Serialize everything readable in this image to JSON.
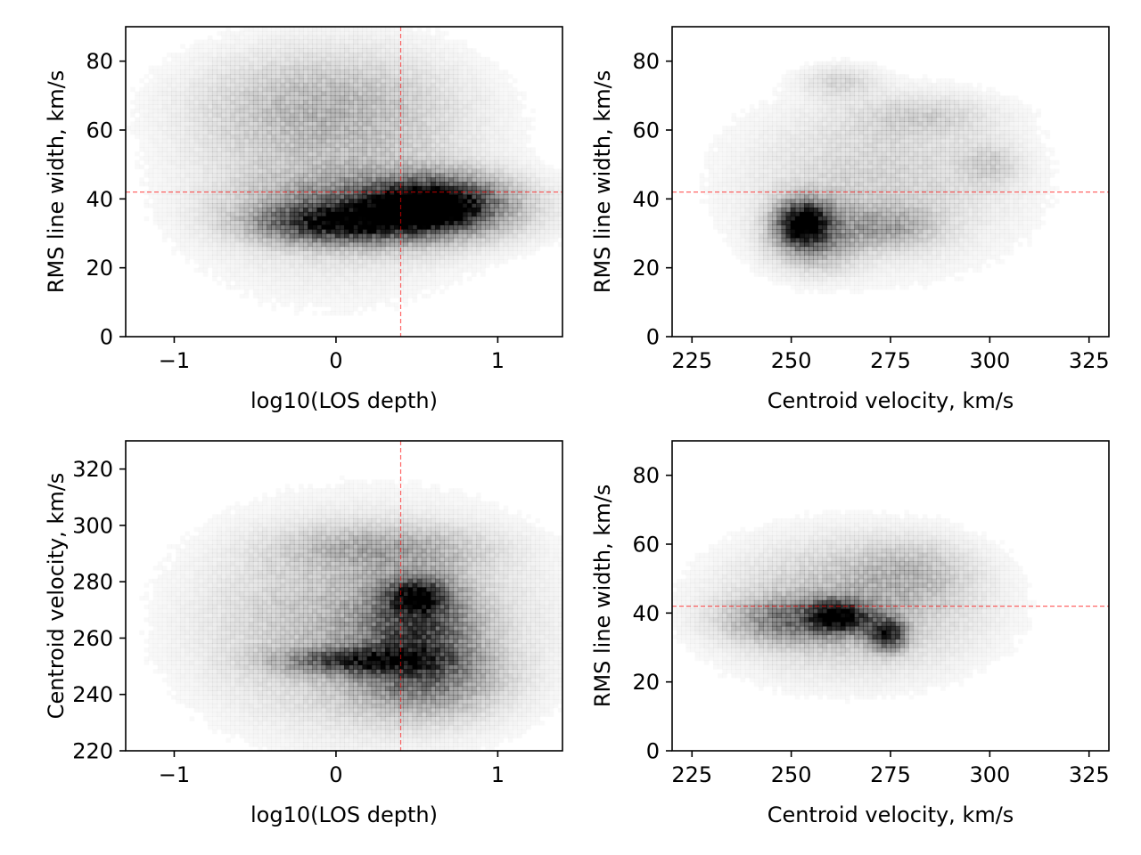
{
  "figure": {
    "ref_line_color": "#ff0000",
    "density_color": "#000000",
    "background": "#ffffff"
  },
  "chart_data": [
    {
      "type": "heatmap",
      "title": "",
      "xlabel": "log10(LOS depth)",
      "ylabel": "RMS line width, km/s",
      "xlim": [
        -1.3,
        1.4
      ],
      "ylim": [
        0,
        90
      ],
      "xticks": [
        -1,
        0,
        1
      ],
      "xtick_labels": [
        "−1",
        "0",
        "1"
      ],
      "yticks": [
        0,
        20,
        40,
        60,
        80
      ],
      "ytick_labels": [
        "0",
        "20",
        "40",
        "60",
        "80"
      ],
      "ref_lines": {
        "x": 0.4,
        "y": 42
      },
      "density_blobs": [
        {
          "x": 0.0,
          "y": 50,
          "sx": 0.55,
          "sy": 20,
          "w": 0.15
        },
        {
          "x": -0.1,
          "y": 68,
          "sx": 0.5,
          "sy": 9,
          "w": 0.12
        },
        {
          "x": 0.35,
          "y": 37,
          "sx": 0.45,
          "sy": 6,
          "w": 0.55
        },
        {
          "x": 0.0,
          "y": 33,
          "sx": 0.3,
          "sy": 3.5,
          "w": 0.65
        },
        {
          "x": 0.55,
          "y": 37,
          "sx": 0.2,
          "sy": 3.5,
          "w": 0.95
        },
        {
          "x": 0.65,
          "y": 40,
          "sx": 0.25,
          "sy": 5,
          "w": 0.4
        }
      ]
    },
    {
      "type": "heatmap",
      "title": "",
      "xlabel": "Centroid velocity, km/s",
      "ylabel": "RMS line width, km/s",
      "xlim": [
        220,
        330
      ],
      "ylim": [
        0,
        90
      ],
      "xticks": [
        225,
        250,
        275,
        300,
        325
      ],
      "xtick_labels": [
        "225",
        "250",
        "275",
        "300",
        "325"
      ],
      "yticks": [
        0,
        20,
        40,
        60,
        80
      ],
      "ytick_labels": [
        "0",
        "20",
        "40",
        "60",
        "80"
      ],
      "ref_lines": {
        "y": 42
      },
      "density_blobs": [
        {
          "x": 272,
          "y": 45,
          "sx": 22,
          "sy": 15,
          "w": 0.12
        },
        {
          "x": 253,
          "y": 33,
          "sx": 4,
          "sy": 4,
          "w": 1.0
        },
        {
          "x": 256,
          "y": 30,
          "sx": 7,
          "sy": 6,
          "w": 0.35
        },
        {
          "x": 274,
          "y": 32,
          "sx": 8,
          "sy": 4,
          "w": 0.22
        },
        {
          "x": 262,
          "y": 74,
          "sx": 6,
          "sy": 3,
          "w": 0.1
        },
        {
          "x": 283,
          "y": 64,
          "sx": 12,
          "sy": 4,
          "w": 0.09
        },
        {
          "x": 300,
          "y": 50,
          "sx": 5,
          "sy": 4,
          "w": 0.1
        }
      ]
    },
    {
      "type": "heatmap",
      "title": "",
      "xlabel": "log10(LOS depth)",
      "ylabel": "Centroid velocity, km/s",
      "xlim": [
        -1.3,
        1.4
      ],
      "ylim": [
        220,
        330
      ],
      "xticks": [
        -1,
        0,
        1
      ],
      "xtick_labels": [
        "−1",
        "0",
        "1"
      ],
      "yticks": [
        220,
        240,
        260,
        280,
        300,
        320
      ],
      "ytick_labels": [
        "220",
        "240",
        "260",
        "280",
        "300",
        "320"
      ],
      "ref_lines": {
        "x": 0.4
      },
      "density_blobs": [
        {
          "x": 0.2,
          "y": 265,
          "sx": 0.6,
          "sy": 22,
          "w": 0.22
        },
        {
          "x": 0.15,
          "y": 252,
          "sx": 0.3,
          "sy": 3,
          "w": 0.6
        },
        {
          "x": 0.5,
          "y": 262,
          "sx": 0.22,
          "sy": 12,
          "w": 0.5
        },
        {
          "x": 0.5,
          "y": 275,
          "sx": 0.12,
          "sy": 4,
          "w": 0.7
        },
        {
          "x": 0.55,
          "y": 245,
          "sx": 0.3,
          "sy": 8,
          "w": 0.25
        },
        {
          "x": 0.3,
          "y": 292,
          "sx": 0.4,
          "sy": 5,
          "w": 0.18
        }
      ]
    },
    {
      "type": "heatmap",
      "title": "",
      "xlabel": "Centroid velocity, km/s",
      "ylabel": "RMS line width, km/s",
      "xlim": [
        220,
        330
      ],
      "ylim": [
        0,
        90
      ],
      "xticks": [
        225,
        250,
        275,
        300,
        325
      ],
      "xtick_labels": [
        "225",
        "250",
        "275",
        "300",
        "325"
      ],
      "yticks": [
        0,
        20,
        40,
        60,
        80
      ],
      "ytick_labels": [
        "0",
        "20",
        "40",
        "60",
        "80"
      ],
      "ref_lines": {
        "y": 42
      },
      "density_blobs": [
        {
          "x": 265,
          "y": 42,
          "sx": 20,
          "sy": 12,
          "w": 0.2
        },
        {
          "x": 262,
          "y": 39,
          "sx": 5,
          "sy": 3,
          "w": 0.85
        },
        {
          "x": 274,
          "y": 34,
          "sx": 3,
          "sy": 3,
          "w": 0.8
        },
        {
          "x": 250,
          "y": 38,
          "sx": 10,
          "sy": 4,
          "w": 0.35
        },
        {
          "x": 280,
          "y": 52,
          "sx": 10,
          "sy": 6,
          "w": 0.12
        }
      ]
    }
  ]
}
